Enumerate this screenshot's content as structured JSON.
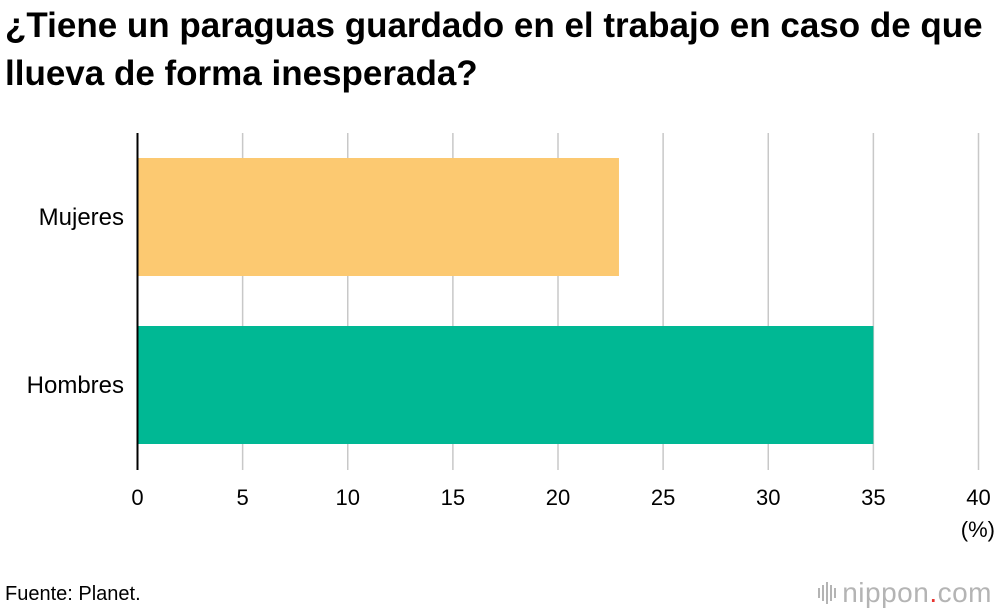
{
  "chart_data": {
    "type": "bar",
    "orientation": "horizontal",
    "title": "¿Tiene un paraguas guardado en el trabajo en caso de que llueva de forma inesperada?",
    "categories": [
      "Mujeres",
      "Hombres"
    ],
    "values": [
      22.9,
      35.0
    ],
    "colors": [
      "#fcc971",
      "#00b894"
    ],
    "xlim": [
      0,
      40
    ],
    "xticks": [
      0,
      5,
      10,
      15,
      20,
      25,
      30,
      35,
      40
    ],
    "xunit": "(%)",
    "grid": true
  },
  "source": "Fuente: Planet.",
  "brand": {
    "name": "nippon",
    "dot": ".",
    "tld": "com",
    "dot_color": "#e8342f",
    "text_color": "#b4b4b4"
  }
}
